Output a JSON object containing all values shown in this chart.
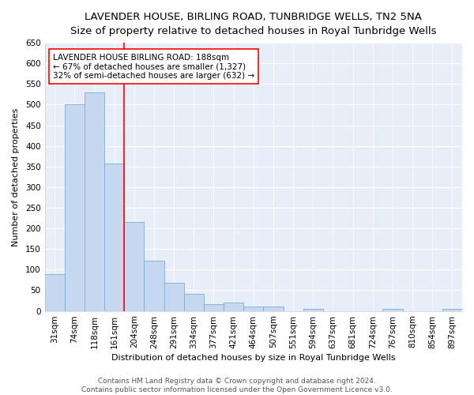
{
  "title": "LAVENDER HOUSE, BIRLING ROAD, TUNBRIDGE WELLS, TN2 5NA",
  "subtitle": "Size of property relative to detached houses in Royal Tunbridge Wells",
  "xlabel": "Distribution of detached houses by size in Royal Tunbridge Wells",
  "ylabel": "Number of detached properties",
  "bar_labels": [
    "31sqm",
    "74sqm",
    "118sqm",
    "161sqm",
    "204sqm",
    "248sqm",
    "291sqm",
    "334sqm",
    "377sqm",
    "421sqm",
    "464sqm",
    "507sqm",
    "551sqm",
    "594sqm",
    "637sqm",
    "681sqm",
    "724sqm",
    "767sqm",
    "810sqm",
    "854sqm",
    "897sqm"
  ],
  "bar_values": [
    90,
    500,
    530,
    358,
    215,
    122,
    68,
    42,
    17,
    20,
    10,
    10,
    0,
    5,
    0,
    0,
    0,
    5,
    0,
    0,
    5
  ],
  "bar_color": "#c5d8f0",
  "bar_edge_color": "#7bafd4",
  "vline_x": 4,
  "vline_color": "red",
  "annotation_text": "LAVENDER HOUSE BIRLING ROAD: 188sqm\n← 67% of detached houses are smaller (1,327)\n32% of semi-detached houses are larger (632) →",
  "annotation_box_color": "white",
  "annotation_box_edge": "red",
  "ylim": [
    0,
    650
  ],
  "yticks": [
    0,
    50,
    100,
    150,
    200,
    250,
    300,
    350,
    400,
    450,
    500,
    550,
    600,
    650
  ],
  "footer": "Contains HM Land Registry data © Crown copyright and database right 2024.\nContains public sector information licensed under the Open Government Licence v3.0.",
  "bg_color": "#e8eef8",
  "fig_color": "#ffffff",
  "grid_color": "white",
  "title_fontsize": 9.5,
  "label_fontsize": 8,
  "tick_fontsize": 7.5,
  "footer_fontsize": 6.5,
  "annot_fontsize": 7.5
}
